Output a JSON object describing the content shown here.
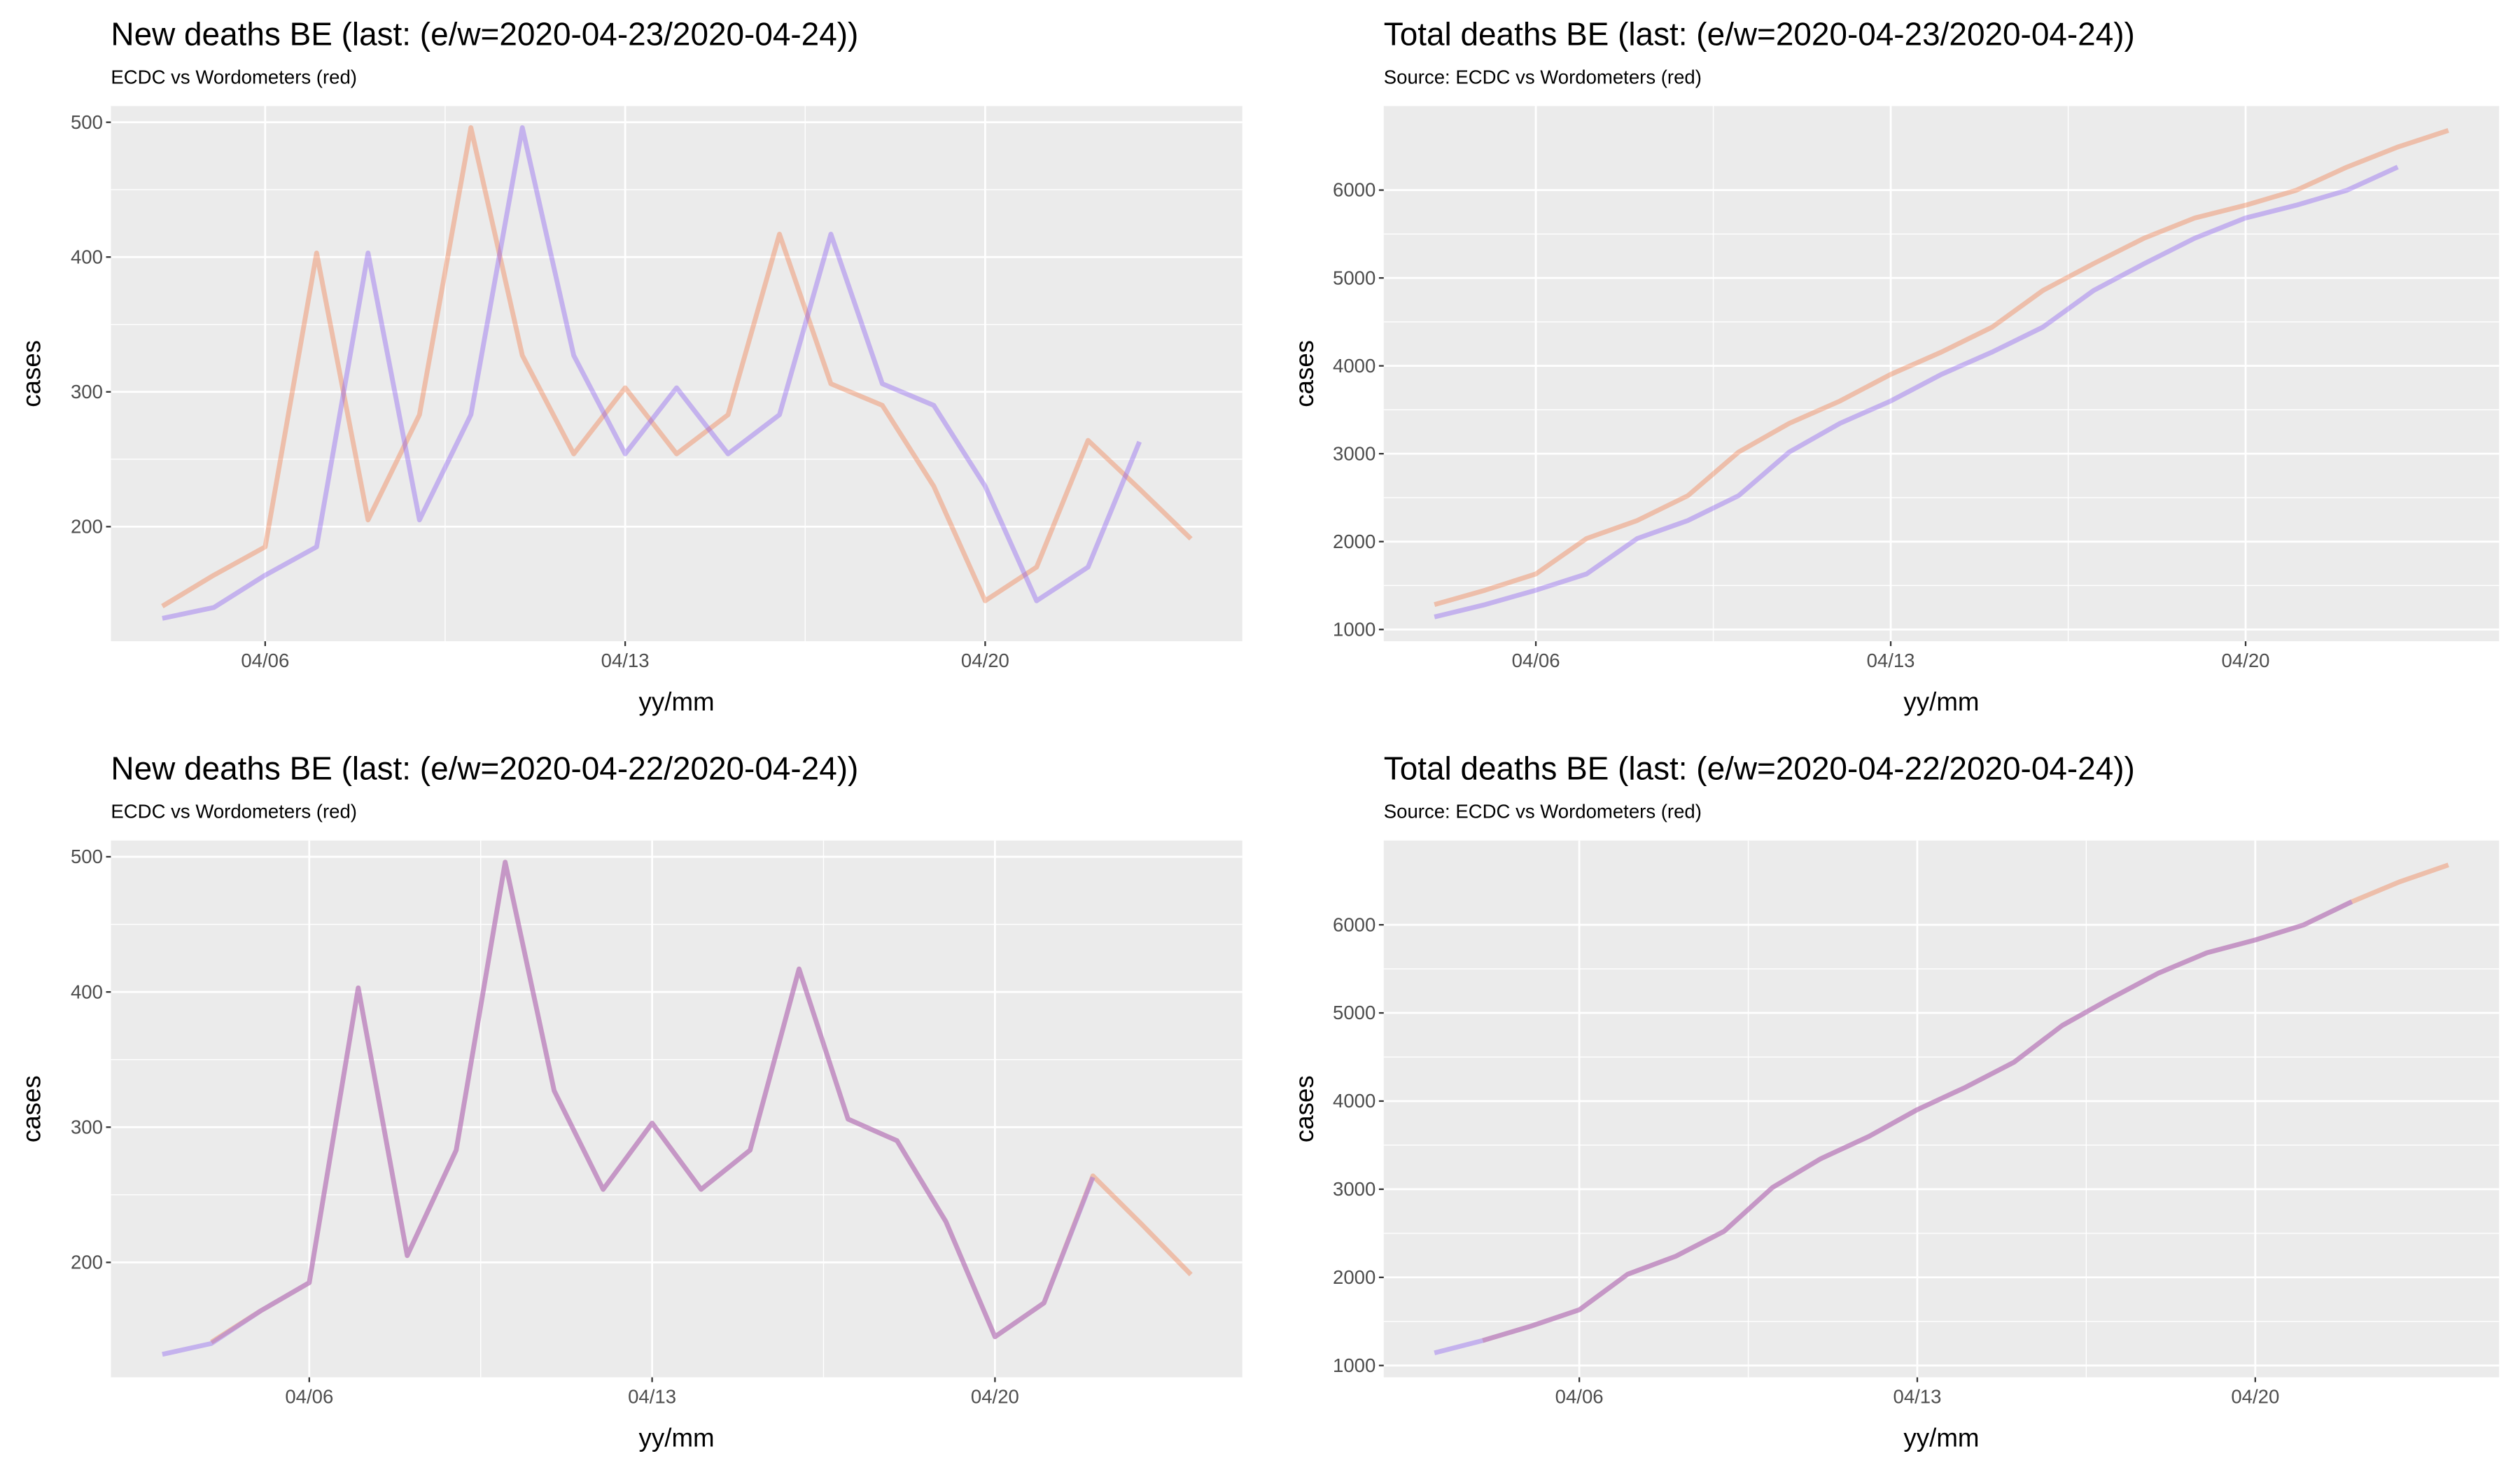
{
  "chart_data": [
    {
      "type": "line",
      "title": "New deaths BE (last: (e/w=2020-04-23/2020-04-24))",
      "subtitle": "ECDC vs Wordometers (red)",
      "xlabel": "yy/mm",
      "ylabel": "cases",
      "grid": true,
      "xlim": [
        3,
        25
      ],
      "xticks": [
        {
          "value": 6,
          "label": "04/06"
        },
        {
          "value": 13,
          "label": "04/13"
        },
        {
          "value": 20,
          "label": "04/20"
        }
      ],
      "ylim": [
        115,
        512
      ],
      "yticks": [
        200,
        300,
        400,
        500
      ],
      "series": [
        {
          "color": "#f07a48",
          "x": [
            4,
            5,
            6,
            7,
            8,
            9,
            10,
            11,
            12,
            13,
            14,
            15,
            16,
            17,
            18,
            19,
            20,
            21,
            22,
            23,
            24
          ],
          "values": [
            141,
            164,
            185,
            403,
            205,
            283,
            496,
            327,
            254,
            303,
            254,
            283,
            417,
            306,
            290,
            230,
            145,
            170,
            264,
            228,
            191
          ]
        },
        {
          "color": "#8a5cf0",
          "x": [
            4,
            5,
            6,
            7,
            8,
            9,
            10,
            11,
            12,
            13,
            14,
            15,
            16,
            17,
            18,
            19,
            20,
            21,
            22,
            23
          ],
          "values": [
            132,
            140,
            164,
            185,
            403,
            205,
            283,
            496,
            327,
            254,
            303,
            254,
            283,
            417,
            306,
            290,
            230,
            145,
            170,
            263
          ]
        }
      ]
    },
    {
      "type": "line",
      "title": "Total deaths BE (last: (e/w=2020-04-23/2020-04-24))",
      "subtitle": "Source: ECDC vs Wordometers (red)",
      "xlabel": "yy/mm",
      "ylabel": "cases",
      "grid": true,
      "xlim": [
        3,
        25
      ],
      "xticks": [
        {
          "value": 6,
          "label": "04/06"
        },
        {
          "value": 13,
          "label": "04/13"
        },
        {
          "value": 20,
          "label": "04/20"
        }
      ],
      "ylim": [
        866,
        6956
      ],
      "yticks": [
        1000,
        2000,
        3000,
        4000,
        5000,
        6000
      ],
      "series": [
        {
          "color": "#f07a48",
          "x": [
            4,
            5,
            6,
            7,
            8,
            9,
            10,
            11,
            12,
            13,
            14,
            15,
            16,
            17,
            18,
            19,
            20,
            21,
            22,
            23,
            24
          ],
          "values": [
            1283,
            1447,
            1632,
            2035,
            2240,
            2523,
            3019,
            3346,
            3600,
            3903,
            4157,
            4440,
            4857,
            5163,
            5453,
            5683,
            5828,
            5998,
            6262,
            6490,
            6679
          ]
        },
        {
          "color": "#8a5cf0",
          "x": [
            4,
            5,
            6,
            7,
            8,
            9,
            10,
            11,
            12,
            13,
            14,
            15,
            16,
            17,
            18,
            19,
            20,
            21,
            22,
            23
          ],
          "values": [
            1143,
            1283,
            1447,
            1632,
            2035,
            2240,
            2523,
            3019,
            3346,
            3600,
            3903,
            4157,
            4440,
            4857,
            5163,
            5453,
            5683,
            5828,
            5998,
            6262
          ]
        }
      ]
    },
    {
      "type": "line",
      "title": "New deaths BE (last: (e/w=2020-04-22/2020-04-24))",
      "subtitle": "ECDC vs Wordometers (red)",
      "xlabel": "yy/mm",
      "ylabel": "cases",
      "grid": true,
      "xlim": [
        1.95,
        25.05
      ],
      "xticks": [
        {
          "value": 6,
          "label": "04/06"
        },
        {
          "value": 13,
          "label": "04/13"
        },
        {
          "value": 20,
          "label": "04/20"
        }
      ],
      "ylim": [
        115,
        512
      ],
      "yticks": [
        200,
        300,
        400,
        500
      ],
      "series": [
        {
          "color": "#f07a48",
          "x": [
            4,
            5,
            6,
            7,
            8,
            9,
            10,
            11,
            12,
            13,
            14,
            15,
            16,
            17,
            18,
            19,
            20,
            21,
            22,
            23,
            24
          ],
          "values": [
            141,
            164,
            185,
            403,
            205,
            283,
            496,
            327,
            254,
            303,
            254,
            283,
            417,
            306,
            290,
            230,
            145,
            170,
            264,
            228,
            191
          ]
        },
        {
          "color": "#8a5cf0",
          "x": [
            3,
            4,
            5,
            6,
            7,
            8,
            9,
            10,
            11,
            12,
            13,
            14,
            15,
            16,
            17,
            18,
            19,
            20,
            21,
            22
          ],
          "values": [
            132,
            140,
            164,
            185,
            403,
            205,
            283,
            496,
            327,
            254,
            303,
            254,
            283,
            417,
            306,
            290,
            230,
            145,
            170,
            263
          ]
        }
      ]
    },
    {
      "type": "line",
      "title": "Total deaths BE (last: (e/w=2020-04-22/2020-04-24))",
      "subtitle": "Source: ECDC vs Wordometers (red)",
      "xlabel": "yy/mm",
      "ylabel": "cases",
      "grid": true,
      "xlim": [
        1.95,
        25.05
      ],
      "xticks": [
        {
          "value": 6,
          "label": "04/06"
        },
        {
          "value": 13,
          "label": "04/13"
        },
        {
          "value": 20,
          "label": "04/20"
        }
      ],
      "ylim": [
        866,
        6956
      ],
      "yticks": [
        1000,
        2000,
        3000,
        4000,
        5000,
        6000
      ],
      "series": [
        {
          "color": "#f07a48",
          "x": [
            4,
            5,
            6,
            7,
            8,
            9,
            10,
            11,
            12,
            13,
            14,
            15,
            16,
            17,
            18,
            19,
            20,
            21,
            22,
            23,
            24
          ],
          "values": [
            1283,
            1447,
            1632,
            2035,
            2240,
            2523,
            3019,
            3346,
            3600,
            3903,
            4157,
            4440,
            4857,
            5163,
            5453,
            5683,
            5828,
            5998,
            6262,
            6490,
            6679
          ]
        },
        {
          "color": "#8a5cf0",
          "x": [
            3,
            4,
            5,
            6,
            7,
            8,
            9,
            10,
            11,
            12,
            13,
            14,
            15,
            16,
            17,
            18,
            19,
            20,
            21,
            22
          ],
          "values": [
            1143,
            1283,
            1447,
            1632,
            2035,
            2240,
            2523,
            3019,
            3346,
            3600,
            3903,
            4157,
            4440,
            4857,
            5163,
            5453,
            5683,
            5828,
            5998,
            6262
          ]
        }
      ]
    }
  ]
}
